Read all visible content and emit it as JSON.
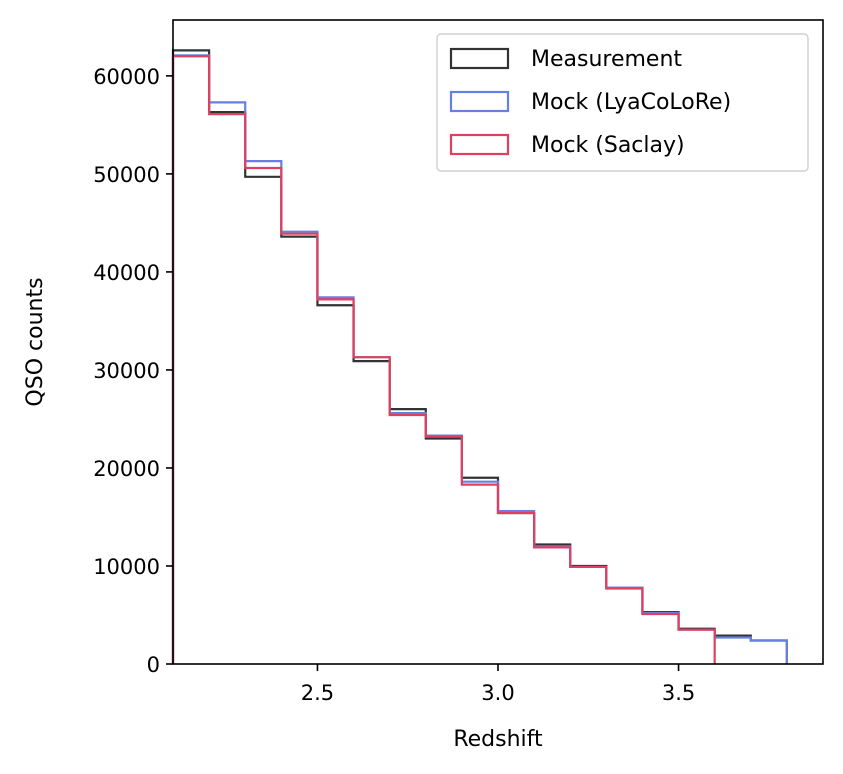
{
  "chart_data": {
    "type": "step-histogram",
    "xlabel": "Redshift",
    "ylabel": "QSO counts",
    "xlim": [
      2.1,
      3.9
    ],
    "ylim": [
      0,
      65700
    ],
    "x_ticks": [
      2.5,
      3.0,
      3.5
    ],
    "x_tick_labels": [
      "2.5",
      "3.0",
      "3.5"
    ],
    "y_ticks": [
      0,
      10000,
      20000,
      30000,
      40000,
      50000,
      60000
    ],
    "y_tick_labels": [
      "0",
      "10000",
      "20000",
      "30000",
      "40000",
      "50000",
      "60000"
    ],
    "bin_edges": [
      2.1,
      2.2,
      2.3,
      2.4,
      2.5,
      2.6,
      2.7,
      2.8,
      2.9,
      3.0,
      3.1,
      3.2,
      3.3,
      3.4,
      3.5,
      3.6,
      3.7,
      3.8
    ],
    "legend_position": "top-right",
    "series": [
      {
        "name": "Measurement",
        "color": "#333333",
        "values": [
          62600,
          56300,
          49700,
          43600,
          36600,
          30900,
          26000,
          23000,
          19000,
          15400,
          12200,
          10000,
          7800,
          5300,
          3600,
          2900,
          2400
        ]
      },
      {
        "name": "Mock (LyaCoLoRe)",
        "color": "#6680e0",
        "values": [
          62100,
          57300,
          51300,
          44100,
          37400,
          31300,
          25600,
          23300,
          18600,
          15600,
          12000,
          9900,
          7800,
          5200,
          3500,
          2700,
          2400
        ]
      },
      {
        "name": "Mock (Saclay)",
        "color": "#e04060",
        "values": [
          62000,
          56100,
          50600,
          43900,
          37200,
          31300,
          25400,
          23200,
          18300,
          15400,
          11900,
          9900,
          7700,
          5100,
          3500,
          0,
          0
        ]
      }
    ]
  }
}
